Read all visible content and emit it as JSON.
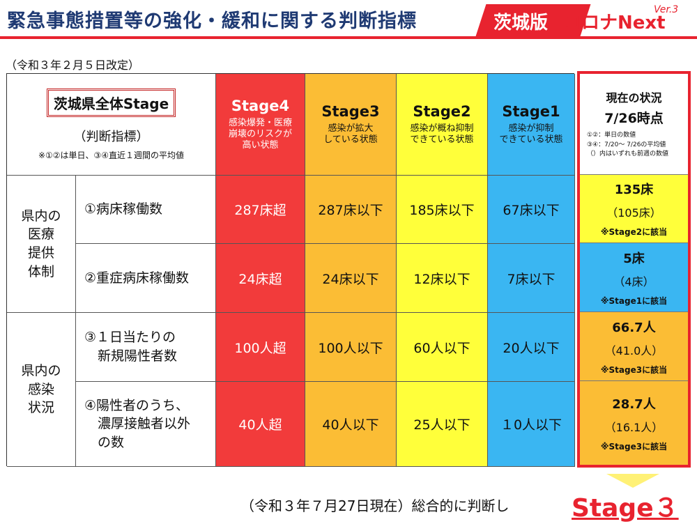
{
  "header": {
    "title": "緊急事態措置等の強化・緩和に関する判断指標",
    "brand_ibaraki": "茨城版",
    "brand_corona": "コロナNext",
    "brand_version": "Ver.3"
  },
  "revised": "（令和３年２月５日改定）",
  "indicator": {
    "box_label": "茨城県全体Stage",
    "subtitle": "（判断指標）",
    "note": "※①②は単日、③④直近１週間の平均値"
  },
  "stages": [
    {
      "name": "Stage4",
      "desc": "感染爆発・医療\n崩壊のリスクが\n高い状態",
      "color": "#f23b3b"
    },
    {
      "name": "Stage3",
      "desc": "感染が拡大\nしている状態",
      "color": "#fbbd35"
    },
    {
      "name": "Stage2",
      "desc": "感染が概ね抑制\nできている状態",
      "color": "#ffff3a"
    },
    {
      "name": "Stage1",
      "desc": "感染が抑制\nできている状態",
      "color": "#3ab6f2"
    }
  ],
  "groups": [
    {
      "label": "県内の\n医療\n提供\n体制"
    },
    {
      "label": "県内の\n感染\n状況"
    }
  ],
  "rows": [
    {
      "label": "①病床稼働数",
      "values": [
        "287床超",
        "287床以下",
        "185床以下",
        "67床以下"
      ]
    },
    {
      "label": "②重症病床稼働数",
      "values": [
        "24床超",
        "24床以下",
        "12床以下",
        "7床以下"
      ]
    },
    {
      "label": "③１日当たりの\n　新規陽性者数",
      "values": [
        "100人超",
        "100人以下",
        "60人以下",
        "20人以下"
      ]
    },
    {
      "label": "④陽性者のうち、\n　濃厚接触者以外\n　の数",
      "values": [
        "40人超",
        "40人以下",
        "25人以下",
        "１0人以下"
      ]
    }
  ],
  "current": {
    "title": "現在の状況",
    "time": "7/26時点",
    "note1": "①②：単日の数値",
    "note2": "③④：7/20～ 7/26の平均値",
    "note3": "（）内はいずれも前週の数値",
    "rows": [
      {
        "value": "135床",
        "prev": "（105床）",
        "note": "※Stage2に該当",
        "color": "#ffff3a"
      },
      {
        "value": "5床",
        "prev": "（4床）",
        "note": "※Stage1に該当",
        "color": "#3ab6f2"
      },
      {
        "value": "66.7人",
        "prev": "（41.0人）",
        "note": "※Stage3に該当",
        "color": "#fbbd35"
      },
      {
        "value": "28.7人",
        "prev": "（16.1人）",
        "note": "※Stage3に該当",
        "color": "#fbbd35"
      }
    ]
  },
  "summary": "（令和３年７月27日現在）総合的に判断し",
  "final_stage": "Stage３"
}
